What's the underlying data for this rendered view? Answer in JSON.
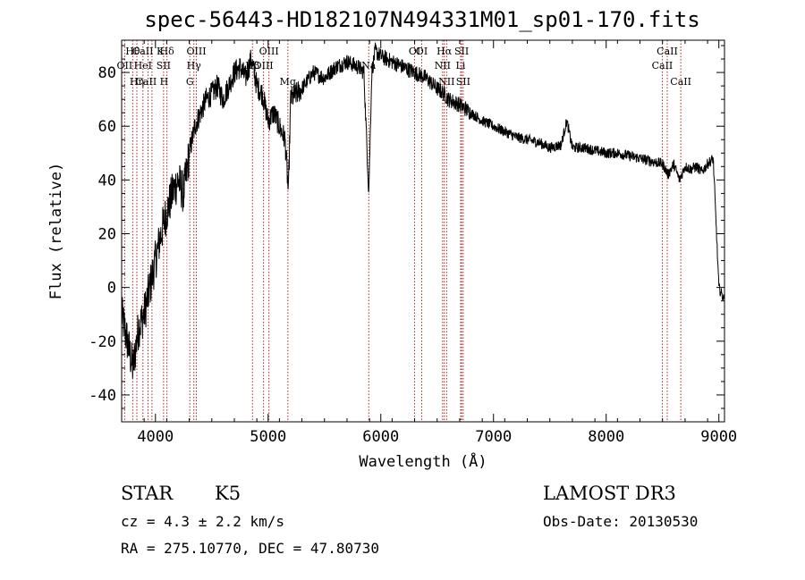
{
  "chart_data": {
    "type": "line",
    "title": "spec-56443-HD182107N494331M01_sp01-170.fits",
    "xlabel": "Wavelength (Å)",
    "ylabel": "Flux (relative)",
    "xlim": [
      3700,
      9050
    ],
    "ylim": [
      -50,
      92
    ],
    "xticks": [
      4000,
      5000,
      6000,
      7000,
      8000,
      9000
    ],
    "yticks": [
      -40,
      -20,
      0,
      20,
      40,
      60,
      80
    ],
    "series": [
      {
        "name": "flux",
        "x": [
          3700,
          3750,
          3800,
          3850,
          3900,
          3950,
          4000,
          4050,
          4100,
          4150,
          4200,
          4250,
          4300,
          4350,
          4400,
          4450,
          4500,
          4550,
          4600,
          4650,
          4700,
          4750,
          4800,
          4850,
          4900,
          4950,
          5000,
          5050,
          5100,
          5150,
          5180,
          5200,
          5250,
          5300,
          5400,
          5500,
          5600,
          5700,
          5800,
          5850,
          5893,
          5920,
          5950,
          6000,
          6100,
          6200,
          6300,
          6400,
          6500,
          6563,
          6600,
          6700,
          6800,
          6900,
          7000,
          7100,
          7200,
          7300,
          7400,
          7500,
          7600,
          7650,
          7700,
          7800,
          7900,
          8000,
          8100,
          8200,
          8300,
          8400,
          8500,
          8550,
          8600,
          8650,
          8700,
          8750,
          8800,
          8850,
          8900,
          8950,
          9000,
          9050
        ],
        "y": [
          -10,
          -20,
          -30,
          -15,
          -10,
          0,
          10,
          20,
          28,
          35,
          40,
          35,
          50,
          60,
          65,
          70,
          72,
          75,
          70,
          75,
          80,
          82,
          78,
          85,
          75,
          72,
          62,
          65,
          60,
          55,
          35,
          70,
          72,
          74,
          80,
          78,
          82,
          84,
          82,
          80,
          35,
          80,
          88,
          86,
          84,
          82,
          80,
          78,
          74,
          72,
          70,
          68,
          65,
          62,
          60,
          58,
          56,
          55,
          54,
          52,
          53,
          62,
          52,
          52,
          51,
          50,
          50,
          49,
          48,
          47,
          46,
          42,
          46,
          40,
          45,
          44,
          45,
          43,
          46,
          48,
          0,
          -5
        ]
      }
    ],
    "lines": [
      {
        "label": "Hθ",
        "x": 3798,
        "row": 1
      },
      {
        "label": "CaII K",
        "x": 3934,
        "row": 1
      },
      {
        "label": "Hδ",
        "x": 4102,
        "row": 1
      },
      {
        "label": "OII",
        "x": 3727,
        "row": 2
      },
      {
        "label": "HeI",
        "x": 3889,
        "row": 2
      },
      {
        "label": "SII",
        "x": 4072,
        "row": 2
      },
      {
        "label": "CaII H",
        "x": 3969,
        "row": 3
      },
      {
        "label": "Hη",
        "x": 3835,
        "row": 3
      },
      {
        "label": "OIII",
        "x": 4363,
        "row": 1
      },
      {
        "label": "Hγ",
        "x": 4341,
        "row": 2
      },
      {
        "label": "G",
        "x": 4305,
        "row": 3
      },
      {
        "label": "OIII",
        "x": 5007,
        "row": 1
      },
      {
        "label": "Hβ",
        "x": 4861,
        "row": 2
      },
      {
        "label": "OIII",
        "x": 4959,
        "row": 2
      },
      {
        "label": "Mg",
        "x": 5175,
        "row": 3
      },
      {
        "label": "Na",
        "x": 5893,
        "row": 2
      },
      {
        "label": "OI",
        "x": 6300,
        "row": 1
      },
      {
        "label": "OI",
        "x": 6363,
        "row": 1
      },
      {
        "label": "Hα",
        "x": 6563,
        "row": 1
      },
      {
        "label": "SII",
        "x": 6717,
        "row": 1
      },
      {
        "label": "NII",
        "x": 6548,
        "row": 2
      },
      {
        "label": "NII",
        "x": 6584,
        "row": 3
      },
      {
        "label": "Li",
        "x": 6708,
        "row": 2
      },
      {
        "label": "SII",
        "x": 6731,
        "row": 3
      },
      {
        "label": "CaII",
        "x": 8498,
        "row": 2
      },
      {
        "label": "CaII",
        "x": 8542,
        "row": 1
      },
      {
        "label": "CaII",
        "x": 8662,
        "row": 3
      }
    ]
  },
  "info": {
    "obj_type": "STAR",
    "obj_subclass": "K5",
    "survey": "LAMOST DR3",
    "cz": "cz = 4.3 ± 2.2 km/s",
    "obs_date": "Obs-Date: 20130530",
    "radec": "RA = 275.10770, DEC =  47.80730"
  }
}
